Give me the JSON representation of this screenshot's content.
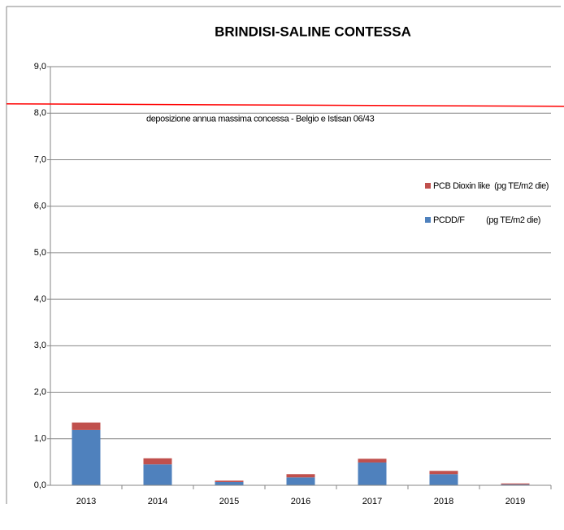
{
  "chart_data": {
    "type": "stacked-bar",
    "title": "BRINDISI-SALINE CONTESSA",
    "categories": [
      "2013",
      "2014",
      "2015",
      "2016",
      "2017",
      "2018",
      "2019"
    ],
    "series": [
      {
        "name": "PCDD/F          (pg TE/m2 die)",
        "color": "#4f81bd",
        "values": [
          1.19,
          0.45,
          0.07,
          0.17,
          0.49,
          0.24,
          0.02
        ]
      },
      {
        "name": "PCB Dioxin like  (pg TE/m2 die)",
        "color": "#c0504d",
        "values": [
          0.16,
          0.13,
          0.03,
          0.07,
          0.08,
          0.07,
          0.02
        ]
      }
    ],
    "ylim": [
      0,
      9
    ],
    "yticks": [
      {
        "value": 0,
        "label": "0,0"
      },
      {
        "value": 1,
        "label": "1,0"
      },
      {
        "value": 2,
        "label": "2,0"
      },
      {
        "value": 3,
        "label": "3,0"
      },
      {
        "value": 4,
        "label": "4,0"
      },
      {
        "value": 5,
        "label": "5,0"
      },
      {
        "value": 6,
        "label": "6,0"
      },
      {
        "value": 7,
        "label": "7,0"
      },
      {
        "value": 8,
        "label": "8,0"
      },
      {
        "value": 9,
        "label": "9,0"
      }
    ],
    "grid": true,
    "reference_line": {
      "value": 8.2,
      "color": "#ff0000",
      "label": "deposizione annua massima concessa - Belgio e Istisan 06/43"
    }
  }
}
